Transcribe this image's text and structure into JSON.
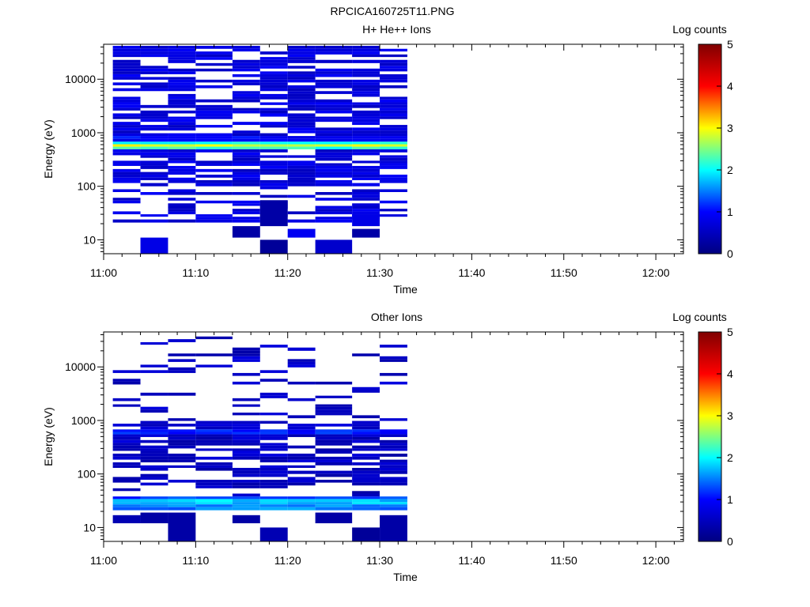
{
  "figure_title": "RPCICA160725T11.PNG",
  "chart_data": [
    {
      "type": "heatmap",
      "title": "H+ He++ Ions",
      "xlabel": "Time",
      "ylabel": "Energy (eV)",
      "colorbar_label": "Log counts",
      "colorbar_ticks": [
        "0",
        "1",
        "2",
        "3",
        "4",
        "5"
      ],
      "colorbar_range": [
        0,
        5
      ],
      "colormap": [
        "#000080",
        "#0000ff",
        "#00ffff",
        "#ffff00",
        "#ff0000",
        "#800000"
      ],
      "y_scale": "log",
      "ylim_eV": [
        5.5,
        45000
      ],
      "x_tick_labels": [
        "11:00",
        "11:10",
        "11:20",
        "11:30",
        "11:40",
        "11:50",
        "12:00"
      ],
      "x_range": [
        "11:00",
        "12:03"
      ],
      "y_tick_labels": [
        "10",
        "100",
        "1000",
        "10000"
      ],
      "time_bins": [
        "11:01",
        "11:04",
        "11:07",
        "11:10",
        "11:14",
        "11:17",
        "11:20",
        "11:23",
        "11:27",
        "11:30"
      ],
      "data_end_time": "11:33",
      "energy_bins_eV": [
        42000,
        37000,
        33000,
        29000,
        26000,
        23000,
        20000,
        17800,
        15800,
        14000,
        12400,
        11000,
        9800,
        8700,
        7700,
        6800,
        6000,
        5300,
        4700,
        4200,
        3700,
        3300,
        2900,
        2600,
        2300,
        2000,
        1800,
        1600,
        1400,
        1250,
        1100,
        980,
        870,
        770,
        680,
        610,
        550,
        490,
        430,
        380,
        340,
        300,
        270,
        240,
        210,
        185,
        165,
        145,
        130,
        115,
        100,
        88,
        78,
        69,
        61,
        54,
        48,
        43,
        38,
        34,
        30,
        27,
        24,
        21,
        18,
        16,
        14,
        12.5,
        11,
        9.8,
        8.7,
        7.7,
        6.8,
        6
      ],
      "background_log_counts": 0.5,
      "bands": [
        {
          "energy_min_eV": 480,
          "energy_max_eV": 560,
          "log_counts": 2.2
        },
        {
          "energy_min_eV": 560,
          "energy_max_eV": 640,
          "log_counts": 2.9
        },
        {
          "energy_min_eV": 640,
          "energy_max_eV": 720,
          "log_counts": 2.1
        },
        {
          "energy_min_eV": 720,
          "energy_max_eV": 820,
          "log_counts": 1.0
        }
      ],
      "low_energy_cells": [
        {
          "time": "11:04",
          "energy_min_eV": 5.5,
          "energy_max_eV": 11,
          "log_counts": 0.8
        },
        {
          "time": "11:14",
          "energy_min_eV": 11,
          "energy_max_eV": 18,
          "log_counts": 0.3
        },
        {
          "time": "11:17",
          "energy_min_eV": 5.5,
          "energy_max_eV": 10,
          "log_counts": 0.2
        },
        {
          "time": "11:17",
          "energy_min_eV": 18,
          "energy_max_eV": 55,
          "log_counts": 0.3
        },
        {
          "time": "11:20",
          "energy_min_eV": 11,
          "energy_max_eV": 16,
          "log_counts": 0.9
        },
        {
          "time": "11:23",
          "energy_min_eV": 5.5,
          "energy_max_eV": 10,
          "log_counts": 0.6
        },
        {
          "time": "11:27",
          "energy_min_eV": 11,
          "energy_max_eV": 16,
          "log_counts": 0.3
        },
        {
          "time": "11:27",
          "energy_min_eV": 18,
          "energy_max_eV": 30,
          "log_counts": 0.8
        }
      ]
    },
    {
      "type": "heatmap",
      "title": "Other Ions",
      "xlabel": "Time",
      "ylabel": "Energy (eV)",
      "colorbar_label": "Log counts",
      "colorbar_ticks": [
        "0",
        "1",
        "2",
        "3",
        "4",
        "5"
      ],
      "colorbar_range": [
        0,
        5
      ],
      "colormap": [
        "#000080",
        "#0000ff",
        "#00ffff",
        "#ffff00",
        "#ff0000",
        "#800000"
      ],
      "y_scale": "log",
      "ylim_eV": [
        5.5,
        45000
      ],
      "x_tick_labels": [
        "11:00",
        "11:10",
        "11:20",
        "11:30",
        "11:40",
        "11:50",
        "12:00"
      ],
      "x_range": [
        "11:00",
        "12:03"
      ],
      "y_tick_labels": [
        "10",
        "100",
        "1000",
        "10000"
      ],
      "time_bins": [
        "11:01",
        "11:04",
        "11:07",
        "11:10",
        "11:14",
        "11:17",
        "11:20",
        "11:23",
        "11:27",
        "11:30"
      ],
      "data_end_time": "11:33",
      "energy_bins_eV": [
        42000,
        37000,
        33000,
        29000,
        26000,
        23000,
        20000,
        17800,
        15800,
        14000,
        12400,
        11000,
        9800,
        8700,
        7700,
        6800,
        6000,
        5300,
        4700,
        4200,
        3700,
        3300,
        2900,
        2600,
        2300,
        2000,
        1800,
        1600,
        1400,
        1250,
        1100,
        980,
        870,
        770,
        680,
        610,
        550,
        490,
        430,
        380,
        340,
        300,
        270,
        240,
        210,
        185,
        165,
        145,
        130,
        115,
        100,
        88,
        78,
        69,
        61,
        54,
        48,
        43,
        38,
        34,
        30,
        27,
        24,
        21,
        18,
        16,
        14,
        12.5,
        11,
        9.8,
        8.7,
        7.7,
        6.8,
        6
      ],
      "background_log_counts": 0.3,
      "bands": [
        {
          "energy_min_eV": 560,
          "energy_max_eV": 690,
          "log_counts": 1.1
        },
        {
          "energy_min_eV": 22,
          "energy_max_eV": 26,
          "log_counts": 1.5
        },
        {
          "energy_min_eV": 26,
          "energy_max_eV": 34,
          "log_counts": 1.8
        },
        {
          "energy_min_eV": 34,
          "energy_max_eV": 40,
          "log_counts": 1.2
        }
      ],
      "low_energy_cells": [
        {
          "time": "11:01",
          "energy_min_eV": 12,
          "energy_max_eV": 17,
          "log_counts": 0.4
        },
        {
          "time": "11:04",
          "energy_min_eV": 12,
          "energy_max_eV": 19,
          "log_counts": 0.3
        },
        {
          "time": "11:07",
          "energy_min_eV": 5.5,
          "energy_max_eV": 19,
          "log_counts": 0.3
        },
        {
          "time": "11:14",
          "energy_min_eV": 12,
          "energy_max_eV": 17,
          "log_counts": 0.3
        },
        {
          "time": "11:17",
          "energy_min_eV": 5.5,
          "energy_max_eV": 10,
          "log_counts": 0.4
        },
        {
          "time": "11:23",
          "energy_min_eV": 12,
          "energy_max_eV": 19,
          "log_counts": 0.3
        },
        {
          "time": "11:27",
          "energy_min_eV": 5.5,
          "energy_max_eV": 10,
          "log_counts": 0.2
        },
        {
          "time": "11:30",
          "energy_min_eV": 5.5,
          "energy_max_eV": 17,
          "log_counts": 0.3
        }
      ]
    }
  ]
}
